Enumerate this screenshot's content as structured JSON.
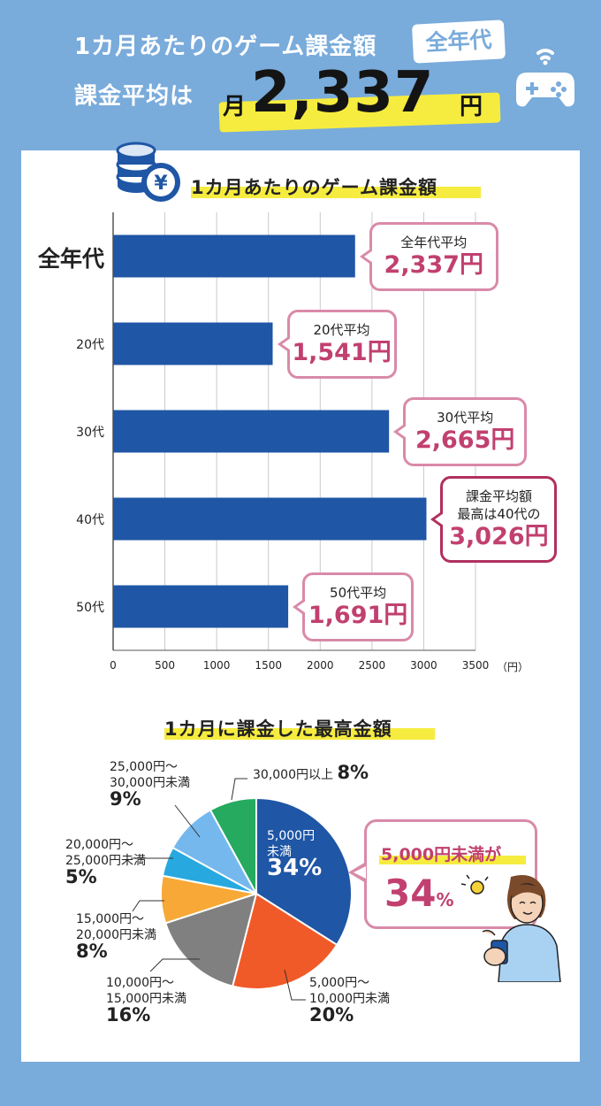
{
  "header": {
    "line1": "1カ月あたりのゲーム課金額",
    "tag": "全年代",
    "line2": "課金平均は",
    "amount_prefix": "月",
    "amount": "2,337",
    "amount_suffix": "円"
  },
  "chart_data": [
    {
      "type": "bar",
      "orientation": "horizontal",
      "title": "1カ月あたりのゲーム課金額",
      "categories": [
        "全年代",
        "20代",
        "30代",
        "40代",
        "50代"
      ],
      "values": [
        2337,
        1541,
        2665,
        3026,
        1691
      ],
      "xlim": [
        0,
        3500
      ],
      "xticks": [
        "0",
        "500",
        "1000",
        "1500",
        "2000",
        "2500",
        "3000",
        "3500"
      ],
      "unit": "（円）",
      "grid": true,
      "color": "#1f56a5",
      "annotations": [
        {
          "line1": "全年代平均",
          "line2": "2,337円"
        },
        {
          "line1": "20代平均",
          "line2": "1,541円"
        },
        {
          "line1": "30代平均",
          "line2": "2,665円"
        },
        {
          "line1": "課金平均額\n最高は40代の",
          "line2": "3,026円"
        },
        {
          "line1": "50代平均",
          "line2": "1,691円"
        }
      ]
    },
    {
      "type": "pie",
      "title": "1カ月に課金した最高金額",
      "slices": [
        {
          "label": "5,000円\n未満",
          "value": 34,
          "pct": "34%",
          "color": "#1f56a5"
        },
        {
          "label": "5,000円～\n10,000円未満",
          "value": 20,
          "pct": "20%",
          "color": "#f05a28"
        },
        {
          "label": "10,000円～\n15,000円未満",
          "value": 16,
          "pct": "16%",
          "color": "#808080"
        },
        {
          "label": "15,000円～\n20,000円未満",
          "value": 8,
          "pct": "8%",
          "color": "#f7a836"
        },
        {
          "label": "20,000円～\n25,000円未満",
          "value": 5,
          "pct": "5%",
          "color": "#27a9df"
        },
        {
          "label": "25,000円～\n30,000円未満",
          "value": 9,
          "pct": "9%",
          "color": "#75b8ee"
        },
        {
          "label": "30,000円以上",
          "value": 8,
          "pct": "8%",
          "color": "#25aa5f"
        }
      ],
      "callout": {
        "line1": "5,000円未満が",
        "line2": "34",
        "unit": "%"
      }
    }
  ]
}
